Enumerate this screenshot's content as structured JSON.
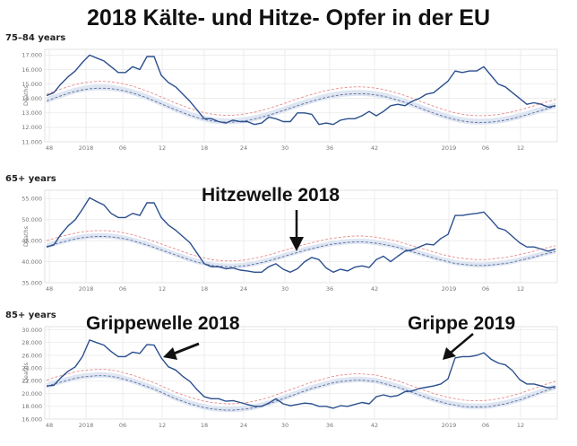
{
  "title": "2018 Kälte- und Hitze- Opfer in der EU",
  "annotations": {
    "hitzewelle": "Hitzewelle 2018",
    "grippewelle": "Grippewelle 2018",
    "grippe2019": "Grippe 2019"
  },
  "colors": {
    "deaths": "#2b4f8e",
    "baseline": "#5a6f9e",
    "threshold": "#e88c8c",
    "band": "#dfe6f2",
    "grid": "#e3e3e3"
  },
  "chart_data": [
    {
      "type": "line",
      "title": "75–84 years",
      "ylabel": "Deaths",
      "xlabel": "",
      "x_ticks": [
        "48",
        "2018",
        "06",
        "12",
        "18",
        "24",
        "30",
        "36",
        "42",
        "2019",
        "06",
        "12"
      ],
      "y_ticks": [
        "11.000",
        "12.000",
        "13.000",
        "14.000",
        "15.000",
        "16.000",
        "17.000"
      ],
      "ylim": [
        11000,
        17400
      ],
      "grid": true,
      "series": [
        {
          "values": [
            14200,
            14400,
            15000,
            15500,
            15900,
            16500,
            17000,
            16800,
            16600,
            16200,
            15800,
            15800,
            16200,
            16000,
            16900,
            16900,
            15600,
            15100,
            14800,
            14300,
            13800,
            13200,
            12600,
            12600,
            12400,
            12300,
            12500,
            12400,
            12400,
            12200,
            12300,
            12700,
            12600,
            12400,
            12400,
            13000,
            13000,
            12900,
            12200,
            12300,
            12200,
            12500,
            12600,
            12600,
            12800,
            13100,
            12800,
            13100,
            13500,
            13600,
            13500,
            13800,
            14000,
            14300,
            14400,
            14800,
            15200,
            15900,
            15800,
            15900,
            15900,
            16200,
            15600,
            15000,
            14800,
            14400,
            14000,
            13600,
            13700,
            13600,
            13400,
            13500
          ]
        },
        {
          "values": [
            14300,
            14480,
            14650,
            14820,
            14960,
            15070,
            15140,
            15180,
            15180,
            15150,
            15080,
            14980,
            14850,
            14690,
            14510,
            14310,
            14100,
            13890,
            13680,
            13490,
            13310,
            13150,
            13020,
            12920,
            12860,
            12830,
            12840,
            12880,
            12950,
            13050,
            13170,
            13310,
            13470,
            13630,
            13800,
            13970,
            14130,
            14280,
            14420,
            14540,
            14640,
            14720,
            14770,
            14800,
            14800,
            14770,
            14710,
            14620,
            14500,
            14360,
            14200,
            14020,
            13830,
            13640,
            13460,
            13290,
            13140,
            13010,
            12910,
            12840,
            12810,
            12810,
            12840,
            12890,
            12970,
            13080,
            13200,
            13340,
            13490,
            13640,
            13790,
            13930
          ]
        },
        {
          "values": [
            13830,
            14010,
            14180,
            14350,
            14490,
            14600,
            14670,
            14710,
            14710,
            14680,
            14610,
            14510,
            14380,
            14220,
            14040,
            13840,
            13630,
            13420,
            13210,
            13020,
            12840,
            12680,
            12550,
            12450,
            12390,
            12360,
            12370,
            12410,
            12480,
            12580,
            12700,
            12840,
            13000,
            13160,
            13330,
            13500,
            13660,
            13810,
            13950,
            14070,
            14170,
            14250,
            14300,
            14330,
            14330,
            14300,
            14240,
            14150,
            14030,
            13890,
            13730,
            13550,
            13360,
            13170,
            12990,
            12820,
            12670,
            12540,
            12440,
            12370,
            12340,
            12340,
            12370,
            12420,
            12500,
            12610,
            12730,
            12870,
            13020,
            13170,
            13320,
            13460
          ]
        }
      ]
    },
    {
      "type": "line",
      "title": "65+ years",
      "ylabel": "Deaths",
      "xlabel": "",
      "x_ticks": [
        "48",
        "2018",
        "06",
        "12",
        "18",
        "24",
        "30",
        "36",
        "42",
        "2019",
        "06",
        "12"
      ],
      "y_ticks": [
        "35.000",
        "40.000",
        "45.000",
        "50.000",
        "55.000"
      ],
      "ylim": [
        35000,
        57000
      ],
      "grid": true,
      "series": [
        {
          "values": [
            43500,
            44000,
            46500,
            48500,
            50000,
            52500,
            55200,
            54300,
            53500,
            51500,
            50500,
            50500,
            51500,
            51000,
            54000,
            54000,
            50500,
            48700,
            47500,
            46000,
            44500,
            42000,
            39500,
            38800,
            38800,
            38300,
            38500,
            38000,
            37800,
            37500,
            37500,
            38800,
            39500,
            38200,
            37500,
            38300,
            40000,
            41000,
            40500,
            38500,
            37500,
            38200,
            37800,
            38700,
            39000,
            38600,
            40500,
            41300,
            40000,
            41300,
            42500,
            42800,
            43500,
            44200,
            44000,
            45500,
            46500,
            51000,
            51000,
            51300,
            51500,
            51800,
            50000,
            48000,
            47500,
            46000,
            44500,
            43500,
            43500,
            43000,
            42500,
            43000
          ]
        },
        {
          "values": [
            45000,
            45500,
            46000,
            46400,
            46800,
            47100,
            47300,
            47400,
            47400,
            47300,
            47100,
            46800,
            46400,
            45900,
            45400,
            44800,
            44200,
            43600,
            43000,
            42400,
            41800,
            41300,
            40900,
            40500,
            40300,
            40200,
            40200,
            40300,
            40500,
            40800,
            41200,
            41600,
            42100,
            42600,
            43100,
            43600,
            44100,
            44500,
            44900,
            45300,
            45600,
            45800,
            46000,
            46100,
            46100,
            46000,
            45800,
            45500,
            45200,
            44800,
            44300,
            43800,
            43300,
            42800,
            42300,
            41800,
            41400,
            41000,
            40800,
            40600,
            40500,
            40500,
            40600,
            40800,
            41000,
            41300,
            41700,
            42100,
            42500,
            43000,
            43400,
            43800
          ]
        },
        {
          "values": [
            43600,
            44100,
            44600,
            45000,
            45400,
            45700,
            45900,
            46000,
            46000,
            45900,
            45700,
            45400,
            45000,
            44500,
            44000,
            43400,
            42800,
            42200,
            41600,
            41000,
            40400,
            39900,
            39500,
            39100,
            38900,
            38800,
            38800,
            38900,
            39100,
            39400,
            39800,
            40200,
            40700,
            41200,
            41700,
            42200,
            42700,
            43100,
            43500,
            43900,
            44200,
            44400,
            44600,
            44700,
            44700,
            44600,
            44400,
            44100,
            43800,
            43400,
            42900,
            42400,
            41900,
            41400,
            40900,
            40400,
            40000,
            39600,
            39400,
            39200,
            39100,
            39100,
            39200,
            39400,
            39600,
            39900,
            40300,
            40700,
            41100,
            41600,
            42000,
            42400
          ]
        }
      ]
    },
    {
      "type": "line",
      "title": "85+ years",
      "ylabel": "Deaths",
      "xlabel": "",
      "x_ticks": [
        "48",
        "2018",
        "06",
        "12",
        "18",
        "24",
        "30",
        "36",
        "42",
        "2019",
        "06",
        "12"
      ],
      "y_ticks": [
        "16.000",
        "18.000",
        "20.000",
        "22.000",
        "24.000",
        "26.000",
        "28.000",
        "30.000"
      ],
      "ylim": [
        16000,
        30500
      ],
      "grid": true,
      "series": [
        {
          "values": [
            21200,
            21300,
            22500,
            23500,
            24200,
            25800,
            28400,
            28000,
            27600,
            26600,
            25800,
            25800,
            26500,
            26300,
            27700,
            27600,
            25600,
            24200,
            23700,
            22700,
            21900,
            20600,
            19500,
            19200,
            19200,
            18800,
            18900,
            18600,
            18300,
            18000,
            18000,
            18500,
            19200,
            18400,
            18100,
            18300,
            18500,
            18400,
            18000,
            18000,
            17700,
            18100,
            18000,
            18300,
            18600,
            18400,
            19500,
            19800,
            19500,
            19700,
            20300,
            20400,
            20800,
            21000,
            21200,
            21500,
            22300,
            25600,
            25800,
            25800,
            26000,
            26400,
            25400,
            24800,
            24500,
            23600,
            22200,
            21500,
            21500,
            21200,
            20900,
            21100
          ]
        },
        {
          "values": [
            22100,
            22500,
            22800,
            23100,
            23400,
            23600,
            23700,
            23800,
            23800,
            23700,
            23500,
            23200,
            22900,
            22500,
            22100,
            21700,
            21200,
            20700,
            20200,
            19800,
            19400,
            19100,
            18800,
            18600,
            18500,
            18400,
            18400,
            18500,
            18600,
            18800,
            19100,
            19400,
            19800,
            20200,
            20600,
            21000,
            21400,
            21800,
            22100,
            22400,
            22700,
            22900,
            23000,
            23100,
            23100,
            23000,
            22900,
            22600,
            22300,
            22000,
            21600,
            21200,
            20800,
            20400,
            20000,
            19700,
            19400,
            19200,
            19000,
            18900,
            18900,
            18900,
            19000,
            19200,
            19400,
            19700,
            20000,
            20400,
            20800,
            21200,
            21600,
            21900
          ]
        },
        {
          "values": [
            21100,
            21500,
            21800,
            22100,
            22400,
            22600,
            22700,
            22800,
            22800,
            22700,
            22500,
            22200,
            21900,
            21500,
            21100,
            20700,
            20200,
            19700,
            19200,
            18800,
            18400,
            18100,
            17800,
            17600,
            17500,
            17400,
            17400,
            17500,
            17600,
            17800,
            18100,
            18400,
            18800,
            19200,
            19600,
            20000,
            20400,
            20800,
            21100,
            21400,
            21700,
            21900,
            22000,
            22100,
            22100,
            22000,
            21900,
            21600,
            21300,
            21000,
            20600,
            20200,
            19800,
            19400,
            19000,
            18700,
            18400,
            18200,
            18000,
            17900,
            17900,
            17900,
            18000,
            18200,
            18400,
            18700,
            19000,
            19400,
            19800,
            20200,
            20600,
            20900
          ]
        }
      ]
    }
  ]
}
